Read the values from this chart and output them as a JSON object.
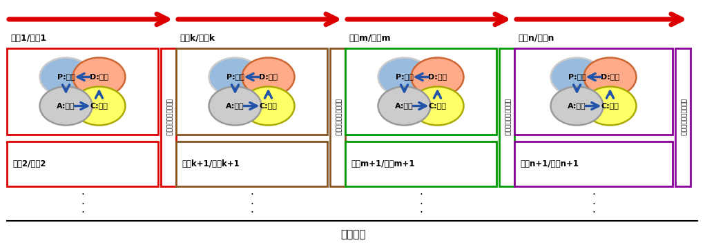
{
  "fig_width": 10.21,
  "fig_height": 3.55,
  "dpi": 100,
  "bg_color": "#ffffff",
  "title_bottom": "時間経過",
  "arrow_color": "#dd0000",
  "pdca_arrow_color": "#2255aa",
  "p_color": "#99bbdd",
  "d_color": "#ffaa88",
  "a_color": "#cccccc",
  "c_color": "#ffff66",
  "p_edge": "#ee8833",
  "d_edge": "#ee8833",
  "a_edge": "#555555",
  "c_edge": "#aaaa00",
  "iterations": [
    {
      "box_color": "#dd0000",
      "label": "機能1/部位1",
      "sub_label": "機能2/部位2"
    },
    {
      "box_color": "#885522",
      "label": "機能k/部位k",
      "sub_label": "機能k+1/部位k+1"
    },
    {
      "box_color": "#009900",
      "label": "機能m/部位m",
      "sub_label": "機能m+1/部位m+1"
    },
    {
      "box_color": "#880099",
      "label": "機能n/部位n",
      "sub_label": "機能n+1/部位n+1"
    }
  ],
  "reg_label": "リグレッションテスト",
  "pdca_labels": {
    "P": "P:設計",
    "D": "D:試験",
    "C": "C:調査",
    "A": "A:改善"
  }
}
